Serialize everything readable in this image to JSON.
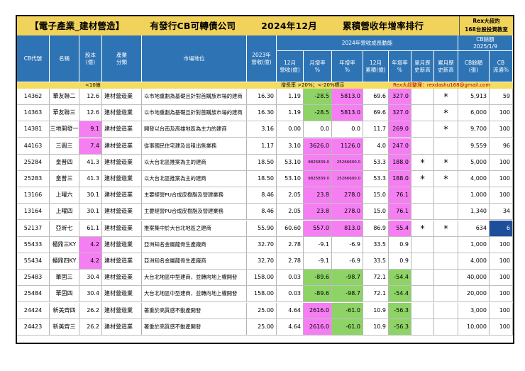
{
  "title": {
    "part1": "【電子產業_建材營造】",
    "part2": "有發行CB可轉債公司",
    "part3": "2024年12月",
    "part4": "累積營收年增率排行",
    "rex_line1": "Rex大叔的",
    "rex_line2": "168台股投資教室"
  },
  "headers": {
    "cb_code": "CB代號",
    "name": "名稱",
    "capital": "股本\n(億)",
    "industry": "產業\n分類",
    "market": "市場地位",
    "rev2023": "2023年\n營收(億)",
    "group": "2024年營收成長動能",
    "dec_rev": "12月\n營收(億)",
    "mom": "月增率\n%",
    "yoy": "年增率\n%",
    "cum_rev": "12月\n累積(億)",
    "cum_yoy": "年增率\n%",
    "month_high": "單月歷\n史新高",
    "cum_high": "累月歷\n史新高",
    "cb_balance_group": "CB餘額\n2025/1/9",
    "cb_bal": "CB餘額\n(張)",
    "cb_flow": "CB\n流通%"
  },
  "legend": {
    "small": "<10億",
    "growth": "增長率 >20%；<-20%標示",
    "credit": "Rex大叔整理：rexdashu168@gmail.com"
  },
  "colors": {
    "pink": "#f67ef3",
    "green": "#8ed366",
    "header_blue": "#2e74b5",
    "title_yellow": "#f1d35c"
  },
  "rows": [
    {
      "code": "14362",
      "name": "華友聯二",
      "cap": "12.6",
      "ind": "建材營造業",
      "mkt": "以市地重劃為基礎且針對首購族市場的建商",
      "r23": "16.30",
      "dec": "1.19",
      "mom": "-28.5",
      "yoy": "5813.0",
      "cum": "69.6",
      "cyoy": "327.0",
      "mh": "",
      "ch": "*",
      "bal": "5,913",
      "flow": "59",
      "cap_hl": "",
      "mom_hl": "green",
      "yoy_hl": "pink",
      "cyoy_hl": "pink",
      "flow_hl": ""
    },
    {
      "code": "14363",
      "name": "華友聯三",
      "cap": "12.6",
      "ind": "建材營造業",
      "mkt": "以市地重劃為基礎且針對首購族市場的建商",
      "r23": "16.30",
      "dec": "1.19",
      "mom": "-28.5",
      "yoy": "5813.0",
      "cum": "69.6",
      "cyoy": "327.0",
      "mh": "",
      "ch": "*",
      "bal": "6,000",
      "flow": "100",
      "cap_hl": "",
      "mom_hl": "green",
      "yoy_hl": "pink",
      "cyoy_hl": "pink",
      "flow_hl": ""
    },
    {
      "code": "14381",
      "name": "三地開發一",
      "cap": "9.1",
      "ind": "建材營造業",
      "mkt": "開發以台南及高雄地區為主力的建商",
      "r23": "3.16",
      "dec": "0.00",
      "mom": "0.0",
      "yoy": "0.0",
      "cum": "11.7",
      "cyoy": "269.0",
      "mh": "",
      "ch": "*",
      "bal": "9,700",
      "flow": "100",
      "cap_hl": "pink",
      "mom_hl": "",
      "yoy_hl": "",
      "cyoy_hl": "pink",
      "flow_hl": ""
    },
    {
      "code": "44163",
      "name": "三圓三",
      "cap": "7.4",
      "ind": "建材營造業",
      "mkt": "從事國民住宅建及出租出售業務",
      "r23": "1.17",
      "dec": "3.10",
      "mom": "3626.0",
      "yoy": "1126.0",
      "cum": "4.0",
      "cyoy": "247.0",
      "mh": "",
      "ch": "",
      "bal": "9,559",
      "flow": "96",
      "cap_hl": "pink",
      "mom_hl": "pink",
      "yoy_hl": "pink",
      "cyoy_hl": "pink",
      "flow_hl": ""
    },
    {
      "code": "25284",
      "name": "皇普四",
      "cap": "41.3",
      "ind": "建材營造業",
      "mkt": "以大台北區推案為主的建商",
      "r23": "18.50",
      "dec": "53.10",
      "mom": "9825839.0",
      "yoy": "25266600.0",
      "cum": "53.3",
      "cyoy": "188.0",
      "mh": "*",
      "ch": "*",
      "bal": "5,000",
      "flow": "100",
      "cap_hl": "",
      "mom_hl": "pink",
      "yoy_hl": "pink",
      "cyoy_hl": "pink",
      "flow_hl": ""
    },
    {
      "code": "25283",
      "name": "皇普三",
      "cap": "41.3",
      "ind": "建材營造業",
      "mkt": "以大台北區推案為主的建商",
      "r23": "18.50",
      "dec": "53.10",
      "mom": "9825839.0",
      "yoy": "25266600.0",
      "cum": "53.3",
      "cyoy": "188.0",
      "mh": "*",
      "ch": "*",
      "bal": "4,000",
      "flow": "100",
      "cap_hl": "",
      "mom_hl": "pink",
      "yoy_hl": "pink",
      "cyoy_hl": "pink",
      "flow_hl": ""
    },
    {
      "code": "13166",
      "name": "上曜六",
      "cap": "30.1",
      "ind": "建材營造業",
      "mkt": "主要經營PU合成皮樹脂及營建業務",
      "r23": "8.46",
      "dec": "2.05",
      "mom": "23.8",
      "yoy": "278.0",
      "cum": "15.0",
      "cyoy": "76.1",
      "mh": "",
      "ch": "",
      "bal": "1,000",
      "flow": "100",
      "cap_hl": "",
      "mom_hl": "pink",
      "yoy_hl": "pink",
      "cyoy_hl": "pink",
      "flow_hl": ""
    },
    {
      "code": "13164",
      "name": "上曜四",
      "cap": "30.1",
      "ind": "建材營造業",
      "mkt": "主要經營PU合成皮樹脂及營建業務",
      "r23": "8.46",
      "dec": "2.05",
      "mom": "23.8",
      "yoy": "278.0",
      "cum": "15.0",
      "cyoy": "76.1",
      "mh": "",
      "ch": "",
      "bal": "1,340",
      "flow": "34",
      "cap_hl": "",
      "mom_hl": "pink",
      "yoy_hl": "pink",
      "cyoy_hl": "pink",
      "flow_hl": ""
    },
    {
      "code": "52137",
      "name": "亞昕七",
      "cap": "61.1",
      "ind": "建材營造業",
      "mkt": "推案集中於大台北地區之建商",
      "r23": "55.90",
      "dec": "60.60",
      "mom": "557.0",
      "yoy": "813.0",
      "cum": "86.9",
      "cyoy": "55.4",
      "mh": "*",
      "ch": "*",
      "bal": "634",
      "flow": "6",
      "cap_hl": "",
      "mom_hl": "pink",
      "yoy_hl": "pink",
      "cyoy_hl": "pink",
      "flow_hl": "blue"
    },
    {
      "code": "55433",
      "name": "櫃鼎三KY",
      "cap": "4.2",
      "ind": "建材營造業",
      "mkt": "亞洲知名金屬龍骨生產廠商",
      "r23": "32.70",
      "dec": "2.78",
      "mom": "-9.1",
      "yoy": "-6.9",
      "cum": "33.5",
      "cyoy": "0.9",
      "mh": "",
      "ch": "",
      "bal": "1,000",
      "flow": "100",
      "cap_hl": "pink",
      "mom_hl": "",
      "yoy_hl": "",
      "cyoy_hl": "",
      "flow_hl": ""
    },
    {
      "code": "55434",
      "name": "櫃鼎四KY",
      "cap": "4.2",
      "ind": "建材營造業",
      "mkt": "亞洲知名金屬龍骨生產廠商",
      "r23": "32.70",
      "dec": "2.78",
      "mom": "-9.1",
      "yoy": "-6.9",
      "cum": "33.5",
      "cyoy": "0.9",
      "mh": "",
      "ch": "",
      "bal": "4,000",
      "flow": "100",
      "cap_hl": "pink",
      "mom_hl": "",
      "yoy_hl": "",
      "cyoy_hl": "",
      "flow_hl": ""
    },
    {
      "code": "25483",
      "name": "華固三",
      "cap": "30.4",
      "ind": "建材營造業",
      "mkt": "大台北地區中型建商，並轉向地上權開發",
      "r23": "158.00",
      "dec": "0.03",
      "mom": "-89.6",
      "yoy": "-98.7",
      "cum": "72.1",
      "cyoy": "-54.4",
      "mh": "",
      "ch": "",
      "bal": "40,000",
      "flow": "100",
      "cap_hl": "",
      "mom_hl": "green",
      "yoy_hl": "green",
      "cyoy_hl": "green",
      "flow_hl": ""
    },
    {
      "code": "25484",
      "name": "華固四",
      "cap": "30.4",
      "ind": "建材營造業",
      "mkt": "大台北地區中型建商，並轉向地上權開發",
      "r23": "158.00",
      "dec": "0.03",
      "mom": "-89.6",
      "yoy": "-98.7",
      "cum": "72.1",
      "cyoy": "-54.4",
      "mh": "",
      "ch": "",
      "bal": "20,000",
      "flow": "100",
      "cap_hl": "",
      "mom_hl": "green",
      "yoy_hl": "green",
      "cyoy_hl": "green",
      "flow_hl": ""
    },
    {
      "code": "24424",
      "name": "新美齊四",
      "cap": "26.2",
      "ind": "建材營造業",
      "mkt": "著重於高質感不動產開發",
      "r23": "25.00",
      "dec": "4.64",
      "mom": "2616.0",
      "yoy": "-61.0",
      "cum": "10.9",
      "cyoy": "-56.3",
      "mh": "",
      "ch": "",
      "bal": "3,000",
      "flow": "100",
      "cap_hl": "",
      "mom_hl": "pink",
      "yoy_hl": "green",
      "cyoy_hl": "green",
      "flow_hl": ""
    },
    {
      "code": "24423",
      "name": "新美齊三",
      "cap": "26.2",
      "ind": "建材營造業",
      "mkt": "著重於高質感不動產開發",
      "r23": "25.00",
      "dec": "4.64",
      "mom": "2616.0",
      "yoy": "-61.0",
      "cum": "10.9",
      "cyoy": "-56.3",
      "mh": "",
      "ch": "",
      "bal": "10,000",
      "flow": "100",
      "cap_hl": "",
      "mom_hl": "pink",
      "yoy_hl": "green",
      "cyoy_hl": "green",
      "flow_hl": ""
    }
  ]
}
